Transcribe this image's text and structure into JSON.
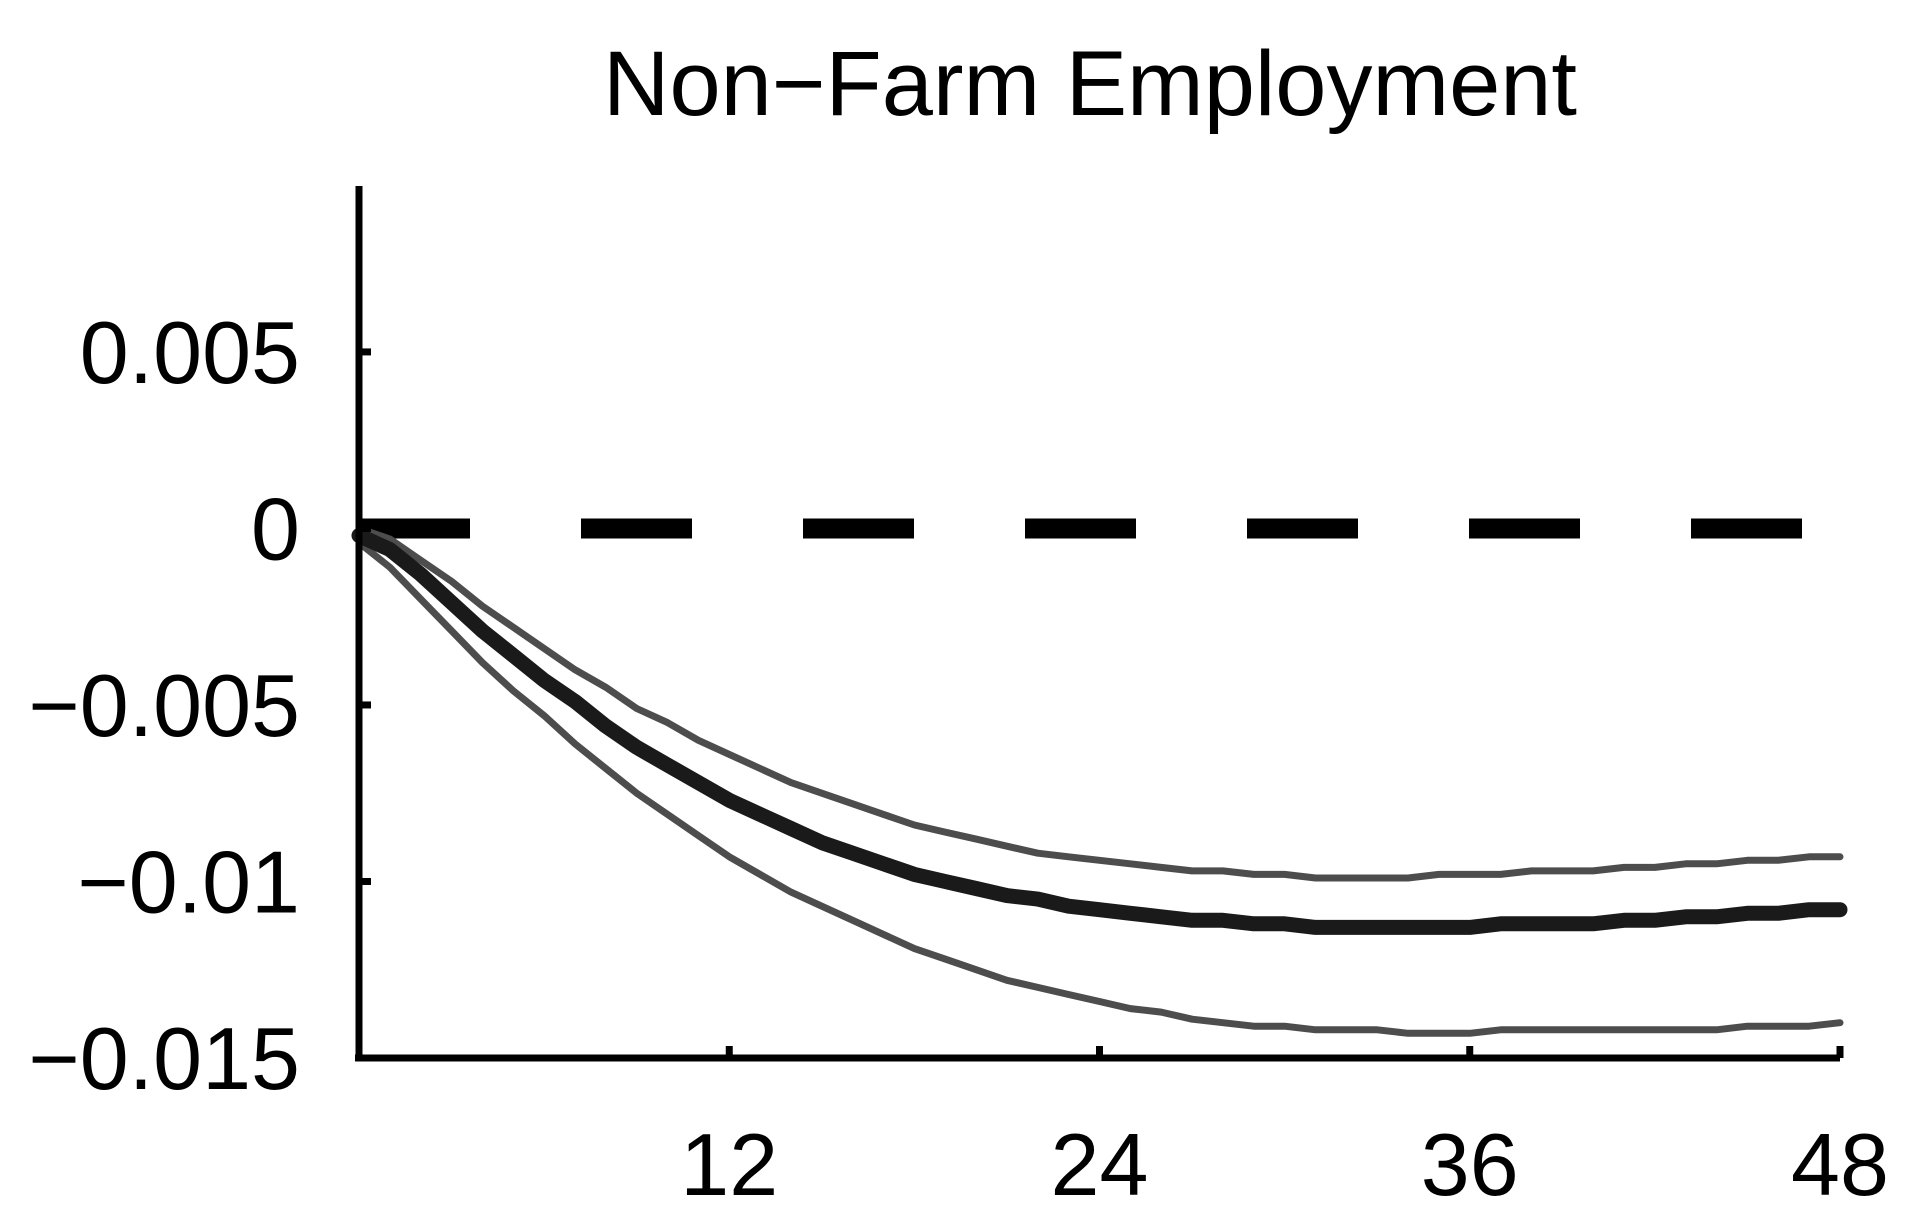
{
  "chart_data": {
    "type": "line",
    "title": "Non−Farm Employment",
    "xlabel": "",
    "ylabel": "",
    "xlim": [
      0,
      48
    ],
    "ylim": [
      -0.015,
      0.005
    ],
    "x_ticks": [
      12,
      24,
      36,
      48
    ],
    "x_tick_labels": [
      "12",
      "24",
      "36",
      "48"
    ],
    "y_ticks": [
      0.005,
      0,
      -0.005,
      -0.01,
      -0.015
    ],
    "y_tick_labels": [
      "0.005",
      "0",
      "−0.005",
      "−0.01",
      "−0.015"
    ],
    "reference_line": {
      "y": 0,
      "style": "dashed"
    },
    "grid": false,
    "legend": "none",
    "x": [
      0,
      1,
      2,
      3,
      4,
      5,
      6,
      7,
      8,
      9,
      10,
      11,
      12,
      13,
      14,
      15,
      16,
      17,
      18,
      19,
      20,
      21,
      22,
      23,
      24,
      25,
      26,
      27,
      28,
      29,
      30,
      31,
      32,
      33,
      34,
      35,
      36,
      37,
      38,
      39,
      40,
      41,
      42,
      43,
      44,
      45,
      46,
      47,
      48
    ],
    "series": [
      {
        "role": "estimate",
        "color": "#1a1a1a",
        "values": [
          -0.0002,
          -0.0006,
          -0.0013,
          -0.0021,
          -0.0029,
          -0.0036,
          -0.0043,
          -0.0049,
          -0.0056,
          -0.0062,
          -0.0067,
          -0.0072,
          -0.0077,
          -0.0081,
          -0.0085,
          -0.0089,
          -0.0092,
          -0.0095,
          -0.0098,
          -0.01,
          -0.0102,
          -0.0104,
          -0.0105,
          -0.0107,
          -0.0108,
          -0.0109,
          -0.011,
          -0.0111,
          -0.0111,
          -0.0112,
          -0.0112,
          -0.0113,
          -0.0113,
          -0.0113,
          -0.0113,
          -0.0113,
          -0.0113,
          -0.0112,
          -0.0112,
          -0.0112,
          -0.0112,
          -0.0111,
          -0.0111,
          -0.011,
          -0.011,
          -0.0109,
          -0.0109,
          -0.0108,
          -0.0108
        ]
      },
      {
        "role": "upper-band",
        "color": "#4d4d4d",
        "values": [
          0.0,
          -0.0003,
          -0.0009,
          -0.0015,
          -0.0022,
          -0.0028,
          -0.0034,
          -0.004,
          -0.0045,
          -0.0051,
          -0.0055,
          -0.006,
          -0.0064,
          -0.0068,
          -0.0072,
          -0.0075,
          -0.0078,
          -0.0081,
          -0.0084,
          -0.0086,
          -0.0088,
          -0.009,
          -0.0092,
          -0.0093,
          -0.0094,
          -0.0095,
          -0.0096,
          -0.0097,
          -0.0097,
          -0.0098,
          -0.0098,
          -0.0099,
          -0.0099,
          -0.0099,
          -0.0099,
          -0.0098,
          -0.0098,
          -0.0098,
          -0.0097,
          -0.0097,
          -0.0097,
          -0.0096,
          -0.0096,
          -0.0095,
          -0.0095,
          -0.0094,
          -0.0094,
          -0.0093,
          -0.0093
        ]
      },
      {
        "role": "lower-band",
        "color": "#4d4d4d",
        "values": [
          -0.0004,
          -0.0011,
          -0.002,
          -0.0029,
          -0.0038,
          -0.0046,
          -0.0053,
          -0.0061,
          -0.0068,
          -0.0075,
          -0.0081,
          -0.0087,
          -0.0093,
          -0.0098,
          -0.0103,
          -0.0107,
          -0.0111,
          -0.0115,
          -0.0119,
          -0.0122,
          -0.0125,
          -0.0128,
          -0.013,
          -0.0132,
          -0.0134,
          -0.0136,
          -0.0137,
          -0.0139,
          -0.014,
          -0.0141,
          -0.0141,
          -0.0142,
          -0.0142,
          -0.0142,
          -0.0143,
          -0.0143,
          -0.0143,
          -0.0142,
          -0.0142,
          -0.0142,
          -0.0142,
          -0.0142,
          -0.0142,
          -0.0142,
          -0.0142,
          -0.0141,
          -0.0141,
          -0.0141,
          -0.014
        ]
      }
    ]
  }
}
